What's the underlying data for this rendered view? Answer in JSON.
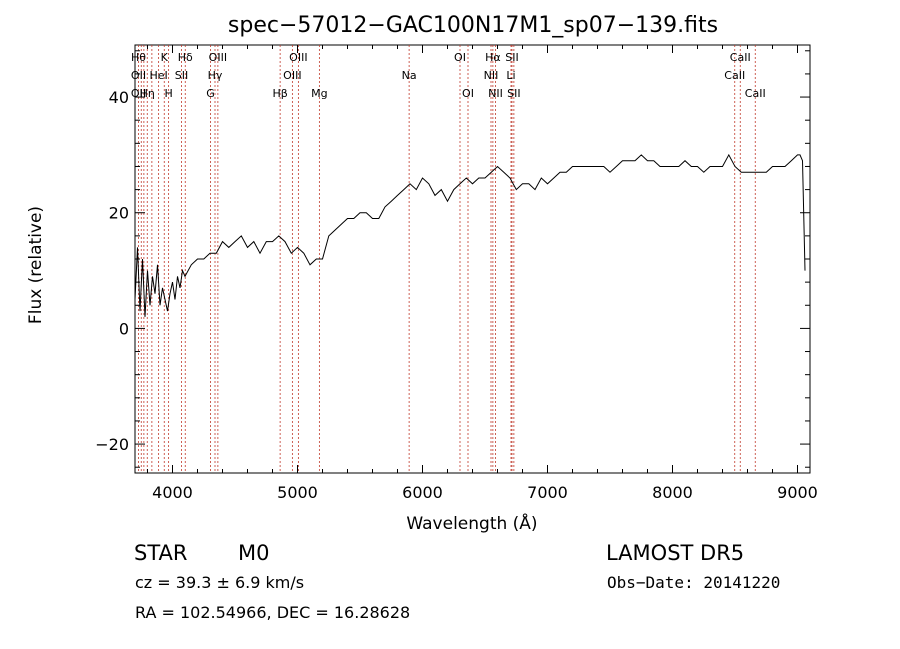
{
  "chart_data": {
    "type": "line",
    "title": "spec−57012−GAC100N17M1_sp07−139.fits",
    "xlabel": "Wavelength (Å)",
    "ylabel": "Flux (relative)",
    "xlim": [
      3700,
      9100
    ],
    "ylim": [
      -25,
      49
    ],
    "x_ticks": [
      4000,
      5000,
      6000,
      7000,
      8000,
      9000
    ],
    "y_ticks": [
      -20,
      0,
      20,
      40
    ],
    "y_tick_labels": [
      "−20",
      "0",
      "20",
      "40"
    ],
    "grid": false,
    "series": [
      {
        "x": [
          3700,
          3720,
          3740,
          3760,
          3780,
          3800,
          3820,
          3840,
          3860,
          3880,
          3900,
          3920,
          3940,
          3960,
          3980,
          4000,
          4020,
          4040,
          4060,
          4080,
          4100,
          4150,
          4200,
          4250,
          4300,
          4350,
          4400,
          4450,
          4500,
          4550,
          4600,
          4650,
          4700,
          4750,
          4800,
          4850,
          4900,
          4950,
          5000,
          5050,
          5100,
          5150,
          5200,
          5250,
          5300,
          5350,
          5400,
          5450,
          5500,
          5550,
          5600,
          5650,
          5700,
          5750,
          5800,
          5850,
          5900,
          5950,
          6000,
          6050,
          6100,
          6150,
          6200,
          6250,
          6300,
          6350,
          6400,
          6450,
          6500,
          6550,
          6600,
          6650,
          6700,
          6750,
          6800,
          6850,
          6900,
          6950,
          7000,
          7050,
          7100,
          7150,
          7200,
          7250,
          7300,
          7350,
          7400,
          7450,
          7500,
          7550,
          7600,
          7650,
          7700,
          7750,
          7800,
          7850,
          7900,
          7950,
          8000,
          8050,
          8100,
          8150,
          8200,
          8250,
          8300,
          8350,
          8400,
          8450,
          8500,
          8550,
          8600,
          8650,
          8700,
          8750,
          8800,
          8850,
          8900,
          8950,
          9000,
          9020,
          9040,
          9060
        ],
        "values": [
          5,
          14,
          3,
          12,
          2,
          10,
          4,
          9,
          6,
          11,
          4,
          7,
          5,
          3,
          6,
          8,
          5,
          9,
          7,
          10,
          9,
          11,
          12,
          12,
          13,
          13,
          15,
          14,
          15,
          16,
          14,
          15,
          13,
          15,
          15,
          16,
          15,
          13,
          14,
          13,
          11,
          12,
          12,
          16,
          17,
          18,
          19,
          19,
          20,
          20,
          19,
          19,
          21,
          22,
          23,
          24,
          25,
          24,
          26,
          25,
          23,
          24,
          22,
          24,
          25,
          26,
          25,
          26,
          26,
          27,
          28,
          27,
          26,
          24,
          25,
          25,
          24,
          26,
          25,
          26,
          27,
          27,
          28,
          28,
          28,
          28,
          28,
          28,
          27,
          28,
          29,
          29,
          29,
          30,
          29,
          29,
          28,
          28,
          28,
          28,
          29,
          28,
          28,
          27,
          28,
          28,
          28,
          30,
          28,
          27,
          27,
          27,
          27,
          27,
          28,
          28,
          28,
          29,
          30,
          30,
          29,
          10
        ]
      }
    ],
    "lines": [
      {
        "x": 3728,
        "labels": [
          "Hθ",
          "OII",
          "OII"
        ]
      },
      {
        "x": 3750,
        "labels": [
          ""
        ]
      },
      {
        "x": 3771,
        "labels": [
          ""
        ]
      },
      {
        "x": 3798,
        "labels": [
          "",
          "",
          "Hη"
        ]
      },
      {
        "x": 3835,
        "labels": [
          ""
        ]
      },
      {
        "x": 3889,
        "labels": [
          "",
          "HeI",
          ""
        ]
      },
      {
        "x": 3934,
        "labels": [
          "K"
        ]
      },
      {
        "x": 3969,
        "labels": [
          "",
          "",
          "H"
        ]
      },
      {
        "x": 4072,
        "labels": [
          "",
          "SII"
        ]
      },
      {
        "x": 4102,
        "labels": [
          "Hδ"
        ]
      },
      {
        "x": 4304,
        "labels": [
          "",
          "",
          "G"
        ]
      },
      {
        "x": 4340,
        "labels": [
          "",
          "Hγ"
        ]
      },
      {
        "x": 4363,
        "labels": [
          "OIII"
        ]
      },
      {
        "x": 4861,
        "labels": [
          "",
          "",
          "Hβ"
        ]
      },
      {
        "x": 4959,
        "labels": [
          "",
          "OIII"
        ]
      },
      {
        "x": 5007,
        "labels": [
          "OIII"
        ]
      },
      {
        "x": 5175,
        "labels": [
          "",
          "",
          "Mg"
        ]
      },
      {
        "x": 5893,
        "labels": [
          "",
          "Na"
        ]
      },
      {
        "x": 6300,
        "labels": [
          "OI"
        ]
      },
      {
        "x": 6364,
        "labels": [
          "",
          "",
          "OI"
        ]
      },
      {
        "x": 6548,
        "labels": [
          "",
          "NII"
        ]
      },
      {
        "x": 6563,
        "labels": [
          "Hα"
        ]
      },
      {
        "x": 6584,
        "labels": [
          "",
          "",
          "NII"
        ]
      },
      {
        "x": 6708,
        "labels": [
          "",
          "Li"
        ]
      },
      {
        "x": 6716,
        "labels": [
          "SII"
        ]
      },
      {
        "x": 6731,
        "labels": [
          "",
          "",
          "SII"
        ]
      },
      {
        "x": 8498,
        "labels": [
          "",
          "CaII"
        ]
      },
      {
        "x": 8542,
        "labels": [
          "CaII"
        ]
      },
      {
        "x": 8662,
        "labels": [
          "",
          "",
          "CaII"
        ]
      }
    ]
  },
  "footer": {
    "class_label": "STAR",
    "subclass": "M0",
    "survey": "LAMOST DR5",
    "cz_line": "cz = 39.3 ± 6.9 km/s",
    "obs_date": "Obs−Date: 20141220",
    "coords": "RA = 102.54966, DEC =  16.28628"
  }
}
